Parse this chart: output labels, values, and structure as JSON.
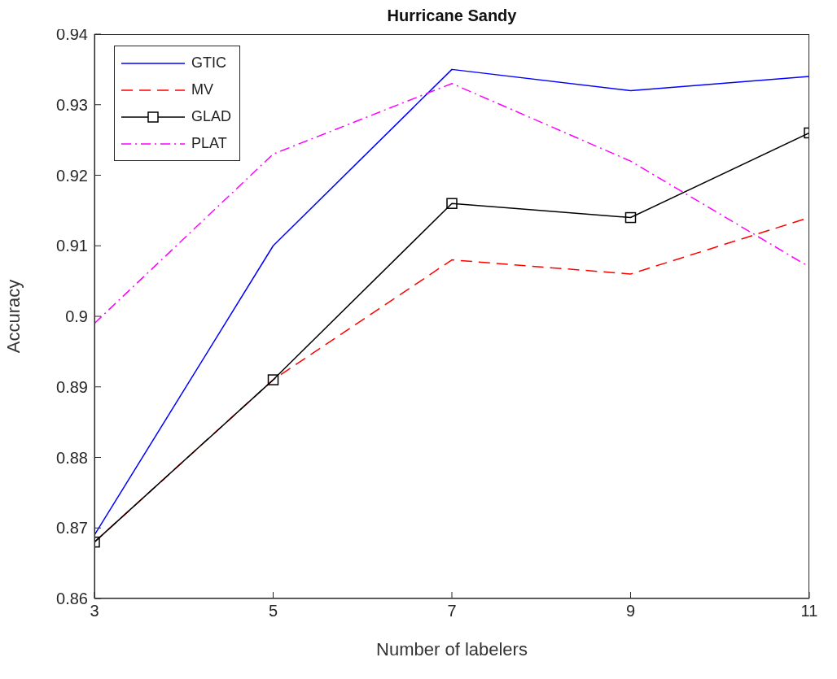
{
  "chart_data": {
    "type": "line",
    "title": "Hurricane Sandy",
    "xlabel": "Number of labelers",
    "ylabel": "Accuracy",
    "x": [
      3,
      5,
      7,
      9,
      11
    ],
    "xlim": [
      3,
      11
    ],
    "xticks": [
      3,
      5,
      7,
      9,
      11
    ],
    "ylim": [
      0.86,
      0.94
    ],
    "yticks": [
      0.86,
      0.87,
      0.88,
      0.89,
      0.9,
      0.91,
      0.92,
      0.93,
      0.94
    ],
    "grid": false,
    "legend": "top left",
    "series": [
      {
        "name": "GTIC",
        "color": "#0000ff",
        "line_style": "solid",
        "marker": "none",
        "values": [
          0.869,
          0.91,
          0.935,
          0.932,
          0.934
        ]
      },
      {
        "name": "MV",
        "color": "#ff0000",
        "line_style": "dashed",
        "marker": "none",
        "values": [
          0.868,
          0.891,
          0.908,
          0.906,
          0.914
        ]
      },
      {
        "name": "GLAD",
        "color": "#000000",
        "line_style": "solid",
        "marker": "square",
        "values": [
          0.868,
          0.891,
          0.916,
          0.914,
          0.926
        ]
      },
      {
        "name": "PLAT",
        "color": "#ff00ff",
        "line_style": "dashdot",
        "marker": "none",
        "values": [
          0.899,
          0.923,
          0.933,
          0.922,
          0.907
        ]
      }
    ]
  }
}
